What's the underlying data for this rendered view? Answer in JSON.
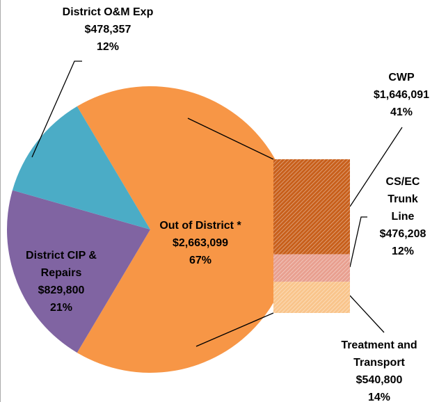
{
  "chart_data": {
    "type": "bar-of-pie",
    "slices": {
      "names": [
        [
          "Out of District *"
        ],
        [
          "District CIP &",
          "Repairs"
        ],
        [
          "District O&M Exp"
        ]
      ],
      "values": [
        2663099,
        829800,
        478357
      ],
      "value_labels": [
        "$2,663,099",
        "$829,800",
        "$478,357"
      ],
      "percents": [
        67,
        21,
        12
      ],
      "percent_labels": [
        "67%",
        "21%",
        "12%"
      ],
      "colors": [
        "#f79646",
        "#8064a2",
        "#4bacc6"
      ]
    },
    "breakdown": {
      "names": [
        [
          "CWP"
        ],
        [
          "CS/EC",
          "Trunk",
          "Line"
        ],
        [
          "Treatment and",
          "Transport"
        ]
      ],
      "values": [
        1646091,
        476208,
        540800
      ],
      "value_labels": [
        "$1,646,091",
        "$476,208",
        "$540,800"
      ],
      "percents": [
        41,
        12,
        14
      ],
      "percent_labels": [
        "41%",
        "12%",
        "14%"
      ],
      "colors": [
        "#c8601c",
        "#e8a090",
        "#f9c58c"
      ]
    }
  }
}
